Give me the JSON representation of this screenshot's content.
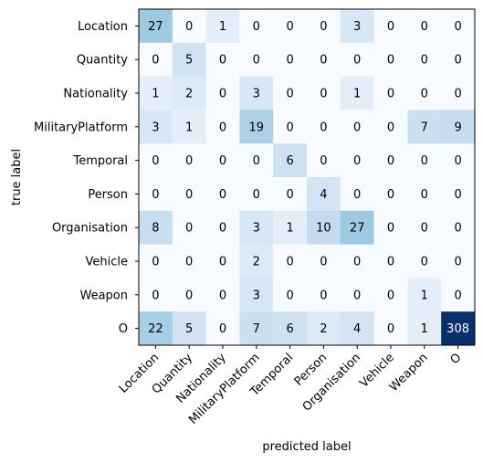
{
  "chart_data": {
    "type": "heatmap",
    "title": "",
    "xlabel": "predicted label",
    "ylabel": "true label",
    "row_labels": [
      "Location",
      "Quantity",
      "Nationality",
      "MilitaryPlatform",
      "Temporal",
      "Person",
      "Organisation",
      "Vehicle",
      "Weapon",
      "O"
    ],
    "col_labels": [
      "Location",
      "Quantity",
      "Nationality",
      "MilitaryPlatform",
      "Temporal",
      "Person",
      "Organisation",
      "Vehicle",
      "Weapon",
      "O"
    ],
    "values": [
      [
        27,
        0,
        1,
        0,
        0,
        0,
        3,
        0,
        0,
        0
      ],
      [
        0,
        5,
        0,
        0,
        0,
        0,
        0,
        0,
        0,
        0
      ],
      [
        1,
        2,
        0,
        3,
        0,
        0,
        1,
        0,
        0,
        0
      ],
      [
        3,
        1,
        0,
        19,
        0,
        0,
        0,
        0,
        7,
        9
      ],
      [
        0,
        0,
        0,
        0,
        6,
        0,
        0,
        0,
        0,
        0
      ],
      [
        0,
        0,
        0,
        0,
        0,
        4,
        0,
        0,
        0,
        0
      ],
      [
        8,
        0,
        0,
        3,
        1,
        10,
        27,
        0,
        0,
        0
      ],
      [
        0,
        0,
        0,
        2,
        0,
        0,
        0,
        0,
        0,
        0
      ],
      [
        0,
        0,
        0,
        3,
        0,
        0,
        0,
        0,
        1,
        0
      ],
      [
        22,
        5,
        0,
        7,
        6,
        2,
        4,
        0,
        1,
        308
      ]
    ],
    "colormap": "Blues",
    "colors": {
      "low": "#f7fbff",
      "high": "#08306b"
    },
    "grid": false,
    "legend": "none"
  }
}
